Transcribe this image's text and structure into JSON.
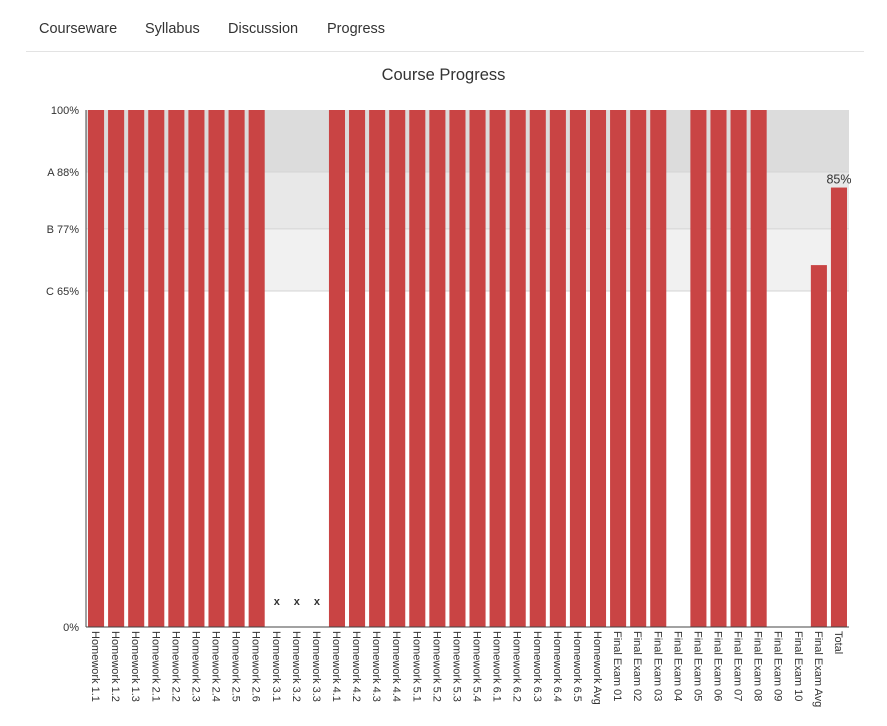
{
  "nav": {
    "items": [
      {
        "label": "Courseware"
      },
      {
        "label": "Syllabus"
      },
      {
        "label": "Discussion"
      },
      {
        "label": "Progress"
      }
    ]
  },
  "colors": {
    "bar": "#c94444",
    "band_a": "#dcdcdc",
    "band_b": "#e8e8e8",
    "band_c": "#f1f1f1",
    "axis": "#444444"
  },
  "chart_data": {
    "type": "bar",
    "title": "Course Progress",
    "ylim": [
      0,
      1
    ],
    "y_ticks": [
      {
        "label": "100%",
        "value": 1.0
      },
      {
        "label": "A 88%",
        "value": 0.88
      },
      {
        "label": "B 77%",
        "value": 0.77
      },
      {
        "label": "C 65%",
        "value": 0.65
      },
      {
        "label": "0%",
        "value": 0.0
      }
    ],
    "grade_bands": [
      {
        "grade": "A",
        "from": 0.88,
        "to": 1.0
      },
      {
        "grade": "B",
        "from": 0.77,
        "to": 0.88
      },
      {
        "grade": "C",
        "from": 0.65,
        "to": 0.77
      }
    ],
    "categories": [
      "Homework 1.1",
      "Homework 1.2",
      "Homework 1.3",
      "Homework 2.1",
      "Homework 2.2",
      "Homework 2.3",
      "Homework 2.4",
      "Homework 2.5",
      "Homework 2.6",
      "Homework 3.1",
      "Homework 3.2",
      "Homework 3.3",
      "Homework 4.1",
      "Homework 4.2",
      "Homework 4.3",
      "Homework 4.4",
      "Homework 5.1",
      "Homework 5.2",
      "Homework 5.3",
      "Homework 5.4",
      "Homework 6.1",
      "Homework 6.2",
      "Homework 6.3",
      "Homework 6.4",
      "Homework 6.5",
      "Homework Avg",
      "Final Exam 01",
      "Final Exam 02",
      "Final Exam 03",
      "Final Exam 04",
      "Final Exam 05",
      "Final Exam 06",
      "Final Exam 07",
      "Final Exam 08",
      "Final Exam 09",
      "Final Exam 10",
      "Final Exam Avg",
      "Total"
    ],
    "values": [
      1,
      1,
      1,
      1,
      1,
      1,
      1,
      1,
      1,
      0,
      0,
      0,
      1,
      1,
      1,
      1,
      1,
      1,
      1,
      1,
      1,
      1,
      1,
      1,
      1,
      1,
      1,
      1,
      1,
      0,
      1,
      1,
      1,
      1,
      0,
      0,
      0.7,
      0.85
    ],
    "dropped": [
      9,
      10,
      11
    ],
    "dropped_marker": "x",
    "annotations": [
      {
        "index": 37,
        "text": "85%"
      }
    ]
  }
}
